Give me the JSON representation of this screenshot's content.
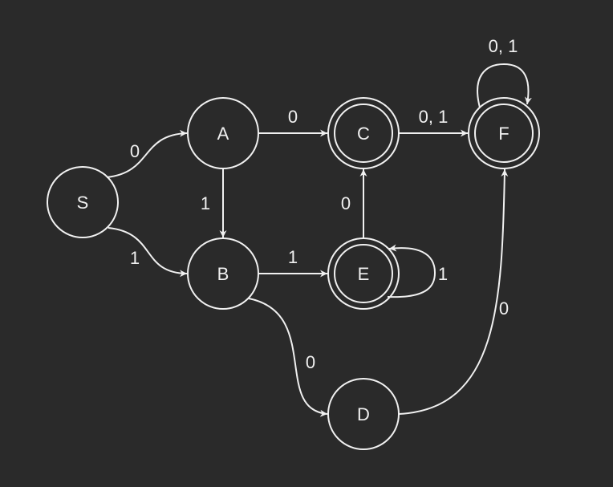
{
  "colors": {
    "background": "#2a2a2a",
    "stroke": "#f0f0f0"
  },
  "states": [
    {
      "id": "S",
      "label": "S",
      "accepting": false
    },
    {
      "id": "A",
      "label": "A",
      "accepting": false
    },
    {
      "id": "B",
      "label": "B",
      "accepting": false
    },
    {
      "id": "C",
      "label": "C",
      "accepting": true
    },
    {
      "id": "D",
      "label": "D",
      "accepting": false
    },
    {
      "id": "E",
      "label": "E",
      "accepting": true
    },
    {
      "id": "F",
      "label": "F",
      "accepting": true
    }
  ],
  "transitions": [
    {
      "from": "S",
      "to": "A",
      "label": "0"
    },
    {
      "from": "S",
      "to": "B",
      "label": "1"
    },
    {
      "from": "A",
      "to": "C",
      "label": "0"
    },
    {
      "from": "A",
      "to": "B",
      "label": "1"
    },
    {
      "from": "B",
      "to": "E",
      "label": "1"
    },
    {
      "from": "B",
      "to": "D",
      "label": "0"
    },
    {
      "from": "C",
      "to": "F",
      "label": "0, 1"
    },
    {
      "from": "E",
      "to": "C",
      "label": "0"
    },
    {
      "from": "E",
      "to": "E",
      "label": "1"
    },
    {
      "from": "D",
      "to": "F",
      "label": "0"
    },
    {
      "from": "F",
      "to": "F",
      "label": "0, 1"
    }
  ]
}
